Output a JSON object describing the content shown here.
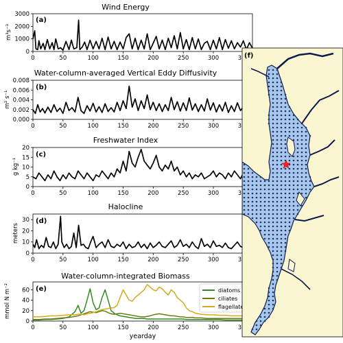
{
  "colors": {
    "background": "#ffffff",
    "map_land": "#fbf6d2",
    "map_water": "#a9c7ea",
    "map_grid": "#1b3570",
    "map_coast": "#0d1a4a",
    "station_star": "#ff1f1f",
    "diatoms": "#2e8b1f",
    "ciliates": "#6e7a14",
    "flagellates": "#d8a91a"
  },
  "xlabel": "yearday",
  "chart_data": [
    {
      "panel": "(a)",
      "type": "line",
      "title": "Wind Energy",
      "ylabel": "m³s⁻³",
      "xlim": [
        0,
        365
      ],
      "ylim": [
        0,
        3000
      ],
      "yticks": [
        "0",
        "1000",
        "2000",
        "3000"
      ],
      "xticks": [
        "0",
        "50",
        "100",
        "150",
        "200",
        "250",
        "300",
        "350"
      ],
      "x": [
        0,
        3,
        5,
        8,
        10,
        13,
        17,
        20,
        24,
        28,
        32,
        35,
        38,
        42,
        46,
        50,
        55,
        60,
        64,
        68,
        73,
        76,
        78,
        82,
        86,
        90,
        95,
        100,
        105,
        110,
        115,
        120,
        125,
        130,
        135,
        140,
        145,
        150,
        155,
        160,
        165,
        170,
        175,
        180,
        185,
        190,
        195,
        200,
        205,
        210,
        215,
        220,
        225,
        230,
        235,
        240,
        245,
        250,
        255,
        260,
        265,
        270,
        275,
        280,
        285,
        290,
        295,
        300,
        305,
        310,
        315,
        320,
        325,
        330,
        335,
        340,
        345,
        350,
        355,
        360,
        365
      ],
      "series": [
        {
          "values": [
            1000,
            1650,
            200,
            150,
            850,
            200,
            650,
            150,
            950,
            200,
            700,
            150,
            1000,
            200,
            300,
            100,
            800,
            150,
            900,
            200,
            300,
            2500,
            150,
            350,
            750,
            150,
            900,
            200,
            800,
            200,
            1050,
            150,
            1150,
            200,
            800,
            150,
            750,
            200,
            1100,
            1400,
            200,
            1050,
            150,
            900,
            200,
            1400,
            150,
            650,
            1200,
            200,
            900,
            150,
            1050,
            300,
            1250,
            200,
            1500,
            200,
            950,
            150,
            1100,
            200,
            1000,
            150,
            650,
            800,
            150,
            900,
            200,
            1100,
            150,
            950,
            250,
            850,
            200,
            700,
            350,
            850,
            150,
            700,
            250
          ]
        }
      ]
    },
    {
      "panel": "(b)",
      "type": "line",
      "title": "Water-column-averaged Vertical Eddy Diffusivity",
      "ylabel": "m² s⁻¹",
      "xlim": [
        0,
        365
      ],
      "ylim": [
        0,
        0.008
      ],
      "yticks": [
        "0.000",
        "0.002",
        "0.004",
        "0.006",
        "0.008"
      ],
      "xticks": [
        "0",
        "50",
        "100",
        "150",
        "200",
        "250",
        "300",
        "350"
      ],
      "x": [
        0,
        4,
        8,
        12,
        16,
        20,
        25,
        30,
        35,
        40,
        45,
        50,
        55,
        60,
        65,
        70,
        75,
        80,
        85,
        90,
        95,
        100,
        105,
        110,
        115,
        120,
        125,
        130,
        135,
        140,
        145,
        150,
        155,
        160,
        165,
        170,
        175,
        180,
        185,
        190,
        195,
        200,
        205,
        210,
        215,
        220,
        225,
        230,
        235,
        240,
        245,
        250,
        255,
        260,
        265,
        270,
        275,
        280,
        285,
        290,
        295,
        300,
        305,
        310,
        315,
        320,
        325,
        330,
        335,
        340,
        345,
        350,
        355,
        360,
        365
      ],
      "series": [
        {
          "values": [
            0.002,
            0.0012,
            0.003,
            0.0015,
            0.0022,
            0.0013,
            0.0025,
            0.0014,
            0.003,
            0.0016,
            0.0023,
            0.0012,
            0.0035,
            0.0018,
            0.0024,
            0.0015,
            0.0045,
            0.0018,
            0.0012,
            0.0028,
            0.0017,
            0.0033,
            0.0015,
            0.0026,
            0.0014,
            0.0032,
            0.0016,
            0.0024,
            0.0015,
            0.0035,
            0.0018,
            0.0038,
            0.0022,
            0.0068,
            0.0025,
            0.0042,
            0.0018,
            0.0038,
            0.0022,
            0.005,
            0.002,
            0.0035,
            0.0018,
            0.0032,
            0.0016,
            0.003,
            0.0018,
            0.0045,
            0.002,
            0.0036,
            0.0017,
            0.0034,
            0.0018,
            0.0044,
            0.0019,
            0.0032,
            0.0016,
            0.003,
            0.0017,
            0.0042,
            0.0019,
            0.0034,
            0.0015,
            0.003,
            0.0017,
            0.0035,
            0.0014,
            0.0028,
            0.0016,
            0.0034,
            0.0018,
            0.0026,
            0.0014,
            0.0028,
            0.0012
          ]
        }
      ]
    },
    {
      "panel": "(c)",
      "type": "line",
      "title": "Freshwater Index",
      "ylabel": "g kg⁻¹",
      "xlim": [
        0,
        365
      ],
      "ylim": [
        0,
        20
      ],
      "yticks": [
        "0",
        "5",
        "10",
        "15",
        "20"
      ],
      "xticks": [
        "0",
        "50",
        "100",
        "150",
        "200",
        "250",
        "300",
        "350"
      ],
      "x": [
        0,
        5,
        10,
        15,
        20,
        25,
        30,
        35,
        40,
        45,
        50,
        55,
        60,
        65,
        70,
        75,
        80,
        85,
        90,
        95,
        100,
        105,
        110,
        115,
        120,
        125,
        130,
        135,
        140,
        145,
        150,
        155,
        160,
        165,
        170,
        175,
        180,
        185,
        190,
        195,
        200,
        205,
        210,
        215,
        220,
        225,
        230,
        235,
        240,
        245,
        250,
        255,
        260,
        265,
        270,
        275,
        280,
        285,
        290,
        295,
        300,
        305,
        310,
        315,
        320,
        325,
        330,
        335,
        340,
        345,
        350,
        355,
        360,
        365
      ],
      "series": [
        {
          "values": [
            5,
            4,
            7,
            5,
            3,
            6,
            4,
            8,
            5,
            3,
            6,
            4,
            7,
            5,
            4,
            8,
            6,
            4,
            7,
            5,
            3,
            6,
            5,
            8,
            6,
            4,
            7,
            5,
            9,
            7,
            13,
            8,
            18,
            12,
            10,
            15,
            19,
            13,
            11,
            9,
            12,
            16,
            10,
            8,
            11,
            9,
            13,
            8,
            10,
            6,
            8,
            5,
            7,
            4,
            6,
            5,
            7,
            4,
            5,
            6,
            8,
            5,
            7,
            6,
            4,
            7,
            5,
            8,
            6,
            4,
            7,
            5,
            3,
            4
          ]
        }
      ]
    },
    {
      "panel": "(d)",
      "type": "line",
      "title": "Halocline",
      "ylabel": "meters",
      "xlim": [
        0,
        365
      ],
      "ylim": [
        0,
        35
      ],
      "yticks": [
        "0",
        "10",
        "20",
        "30"
      ],
      "xticks": [
        "0",
        "50",
        "100",
        "150",
        "200",
        "250",
        "300",
        "350"
      ],
      "x": [
        0,
        3,
        6,
        10,
        14,
        18,
        22,
        26,
        30,
        34,
        38,
        42,
        46,
        48,
        52,
        56,
        60,
        64,
        68,
        72,
        76,
        80,
        84,
        88,
        92,
        96,
        100,
        105,
        110,
        115,
        120,
        125,
        130,
        135,
        140,
        145,
        150,
        155,
        160,
        165,
        170,
        175,
        180,
        185,
        190,
        195,
        200,
        205,
        210,
        215,
        220,
        225,
        230,
        235,
        240,
        245,
        250,
        255,
        260,
        265,
        270,
        275,
        280,
        285,
        290,
        295,
        300,
        305,
        310,
        315,
        320,
        325,
        330,
        335,
        340,
        345,
        350,
        355,
        360,
        365
      ],
      "series": [
        {
          "values": [
            8,
            5,
            12,
            4,
            7,
            5,
            14,
            6,
            5,
            10,
            4,
            8,
            33,
            10,
            5,
            8,
            4,
            6,
            18,
            5,
            25,
            7,
            8,
            5,
            4,
            10,
            15,
            5,
            8,
            10,
            5,
            12,
            6,
            5,
            8,
            6,
            10,
            4,
            8,
            5,
            6,
            10,
            5,
            8,
            4,
            9,
            5,
            7,
            10,
            6,
            5,
            8,
            11,
            5,
            7,
            12,
            6,
            8,
            5,
            10,
            6,
            4,
            13,
            6,
            8,
            5,
            11,
            6,
            7,
            5,
            9,
            5,
            4,
            7,
            10,
            6,
            5,
            8,
            12,
            7
          ]
        }
      ]
    },
    {
      "panel": "(e)",
      "type": "line",
      "title": "Water-column-integrated Biomass",
      "ylabel": "mmol N m⁻²",
      "xlim": [
        0,
        365
      ],
      "ylim": [
        0,
        75
      ],
      "yticks": [
        "0",
        "20",
        "40",
        "60"
      ],
      "xticks": [
        "0",
        "50",
        "100",
        "150",
        "200",
        "250",
        "300",
        "350"
      ],
      "x": [
        0,
        10,
        20,
        30,
        40,
        50,
        60,
        70,
        75,
        80,
        85,
        90,
        95,
        100,
        105,
        110,
        115,
        120,
        125,
        130,
        135,
        140,
        145,
        150,
        155,
        160,
        165,
        170,
        175,
        180,
        185,
        190,
        195,
        200,
        205,
        210,
        215,
        220,
        225,
        230,
        235,
        240,
        245,
        250,
        255,
        260,
        265,
        270,
        275,
        280,
        290,
        300,
        310,
        320,
        330,
        340,
        350,
        365
      ],
      "legend": "top-right",
      "series": [
        {
          "name": "diatoms",
          "values": [
            2,
            2,
            3,
            3,
            4,
            5,
            8,
            18,
            30,
            15,
            20,
            40,
            62,
            35,
            22,
            25,
            45,
            60,
            40,
            20,
            15,
            12,
            10,
            9,
            8,
            7,
            6,
            5,
            5,
            5,
            5,
            4,
            4,
            4,
            4,
            4,
            4,
            4,
            4,
            4,
            4,
            4,
            4,
            4,
            3,
            3,
            3,
            3,
            3,
            3,
            3,
            3,
            3,
            2,
            2,
            2,
            2,
            2
          ]
        },
        {
          "name": "ciliates",
          "values": [
            3,
            3,
            4,
            4,
            5,
            6,
            7,
            9,
            10,
            12,
            14,
            16,
            18,
            17,
            16,
            18,
            20,
            19,
            16,
            14,
            13,
            14,
            15,
            14,
            13,
            12,
            11,
            10,
            9,
            8,
            8,
            9,
            10,
            12,
            13,
            14,
            13,
            12,
            11,
            10,
            10,
            9,
            8,
            8,
            7,
            7,
            7,
            6,
            6,
            6,
            5,
            5,
            5,
            5,
            5,
            5,
            5,
            4
          ]
        },
        {
          "name": "flagellates",
          "values": [
            8,
            8,
            9,
            10,
            10,
            11,
            12,
            12,
            13,
            13,
            12,
            14,
            15,
            16,
            18,
            20,
            22,
            23,
            24,
            25,
            26,
            30,
            45,
            60,
            50,
            40,
            38,
            45,
            50,
            55,
            60,
            70,
            65,
            60,
            58,
            65,
            62,
            55,
            50,
            60,
            55,
            45,
            40,
            35,
            25,
            20,
            18,
            15,
            14,
            13,
            12,
            12,
            11,
            11,
            10,
            10,
            10,
            9
          ]
        }
      ]
    }
  ],
  "map": {
    "label": "(f)"
  }
}
